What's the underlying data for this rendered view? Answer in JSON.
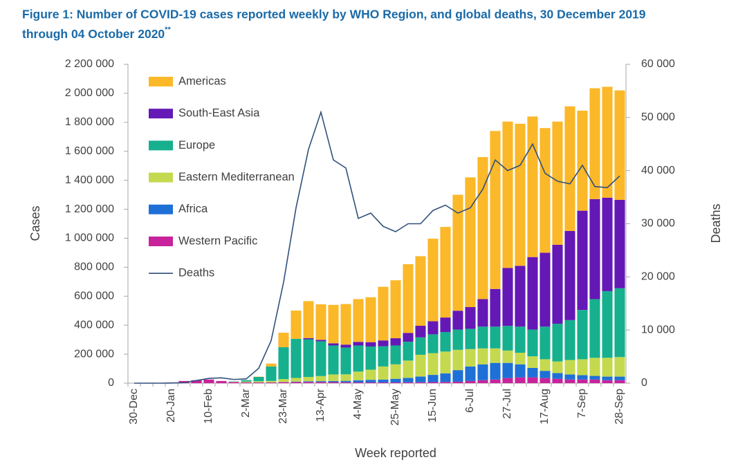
{
  "chart_data": {
    "type": "bar",
    "stacked": true,
    "title": [
      "Figure 1: Number of COVID-19 cases reported weekly by WHO Region, and global deaths, 30 December 2019",
      "through 04 October 2020"
    ],
    "title_note": "**",
    "x_label": "Week reported",
    "y_label": "Cases",
    "y2_label": "Deaths",
    "categories": [
      "30-Dec",
      null,
      null,
      "20-Jan",
      null,
      null,
      "10-Feb",
      null,
      null,
      "2-Mar",
      null,
      null,
      "23-Mar",
      null,
      null,
      "13-Apr",
      null,
      null,
      "4-May",
      null,
      null,
      "25-May",
      null,
      null,
      "15-Jun",
      null,
      null,
      "6-Jul",
      null,
      null,
      "27-Jul",
      null,
      null,
      "17-Aug",
      null,
      null,
      "7-Sep",
      null,
      null,
      "28-Sep"
    ],
    "ylim": [
      0,
      2200000
    ],
    "yticks": [
      0,
      {
        "value": 200000,
        "label": "200 000"
      },
      {
        "value": 400000,
        "label": "400 000"
      },
      {
        "value": 600000,
        "label": "600 000"
      },
      {
        "value": 800000,
        "label": "800 000"
      },
      {
        "value": 1000000,
        "label": "1 000 000"
      },
      {
        "value": 1200000,
        "label": "1 200 000"
      },
      {
        "value": 1400000,
        "label": "1 400 000"
      },
      {
        "value": 1600000,
        "label": "1 600 000"
      },
      {
        "value": 1800000,
        "label": "1 800 000"
      },
      {
        "value": 2000000,
        "label": "2 000 000"
      },
      {
        "value": 2200000,
        "label": "2 200 000"
      }
    ],
    "y2lim": [
      0,
      60000
    ],
    "y2ticks": [
      0,
      {
        "value": 10000,
        "label": "10 000"
      },
      {
        "value": 20000,
        "label": "20 000"
      },
      {
        "value": 30000,
        "label": "30 000"
      },
      {
        "value": 40000,
        "label": "40 000"
      },
      {
        "value": 50000,
        "label": "50 000"
      },
      {
        "value": 60000,
        "label": "60 000"
      }
    ],
    "grid": false,
    "legend": "top-left",
    "series": [
      {
        "name": "Western Pacific",
        "color": "#c8239c",
        "values": [
          100,
          0,
          100,
          5000,
          15000,
          20000,
          25000,
          15000,
          8000,
          6000,
          5000,
          5000,
          7000,
          8000,
          8000,
          8000,
          7000,
          6000,
          5000,
          5000,
          5000,
          5000,
          6000,
          6000,
          7000,
          8000,
          10000,
          15000,
          20000,
          25000,
          35000,
          40000,
          40000,
          35000,
          30000,
          25000,
          25000,
          25000,
          20000,
          20000
        ]
      },
      {
        "name": "Africa",
        "color": "#1f70d6",
        "values": [
          0,
          0,
          0,
          0,
          0,
          0,
          0,
          0,
          0,
          0,
          0,
          0,
          1000,
          3000,
          5000,
          6000,
          8000,
          10000,
          15000,
          18000,
          20000,
          25000,
          30000,
          40000,
          50000,
          60000,
          80000,
          100000,
          110000,
          115000,
          105000,
          90000,
          65000,
          50000,
          40000,
          35000,
          30000,
          25000,
          25000,
          25000
        ]
      },
      {
        "name": "Eastern Mediterranean",
        "color": "#c5d94f",
        "values": [
          0,
          0,
          0,
          0,
          0,
          0,
          0,
          0,
          2000,
          5000,
          8000,
          10000,
          20000,
          25000,
          30000,
          35000,
          45000,
          45000,
          60000,
          70000,
          90000,
          100000,
          120000,
          150000,
          150000,
          150000,
          140000,
          120000,
          110000,
          100000,
          85000,
          80000,
          80000,
          80000,
          80000,
          100000,
          110000,
          125000,
          130000,
          135000
        ]
      },
      {
        "name": "Europe",
        "color": "#16b08f",
        "values": [
          0,
          0,
          0,
          0,
          0,
          0,
          0,
          0,
          2000,
          10000,
          30000,
          100000,
          220000,
          270000,
          260000,
          240000,
          200000,
          185000,
          180000,
          160000,
          140000,
          130000,
          130000,
          120000,
          130000,
          135000,
          140000,
          140000,
          150000,
          150000,
          170000,
          180000,
          185000,
          225000,
          260000,
          275000,
          340000,
          405000,
          460000,
          475000
        ]
      },
      {
        "name": "South-East Asia",
        "color": "#6418b5",
        "values": [
          0,
          0,
          0,
          0,
          0,
          0,
          0,
          0,
          0,
          0,
          0,
          0,
          0,
          0,
          8000,
          10000,
          15000,
          20000,
          25000,
          30000,
          40000,
          50000,
          60000,
          80000,
          90000,
          100000,
          130000,
          150000,
          190000,
          260000,
          400000,
          420000,
          500000,
          510000,
          545000,
          615000,
          685000,
          690000,
          645000,
          610000
        ]
      },
      {
        "name": "Americas",
        "color": "#fbb829",
        "values": [
          0,
          0,
          0,
          0,
          0,
          0,
          0,
          0,
          0,
          0,
          2000,
          20000,
          100000,
          195000,
          255000,
          245000,
          265000,
          280000,
          295000,
          310000,
          370000,
          400000,
          475000,
          480000,
          570000,
          625000,
          800000,
          895000,
          980000,
          1090000,
          1010000,
          980000,
          970000,
          860000,
          850000,
          860000,
          690000,
          765000,
          765000,
          755000
        ]
      },
      {
        "name": "Deaths",
        "type": "line",
        "axis": "y2",
        "color": "#2f4f7a",
        "values": [
          0,
          0,
          0,
          20,
          100,
          500,
          900,
          1000,
          700,
          800,
          2800,
          8000,
          19000,
          33000,
          44000,
          51000,
          42000,
          40500,
          31000,
          32000,
          29500,
          28500,
          30000,
          30000,
          32500,
          33500,
          32000,
          33000,
          36500,
          42000,
          40000,
          41000,
          45000,
          39500,
          38000,
          37500,
          41000,
          37000,
          36800,
          39000
        ]
      }
    ]
  }
}
